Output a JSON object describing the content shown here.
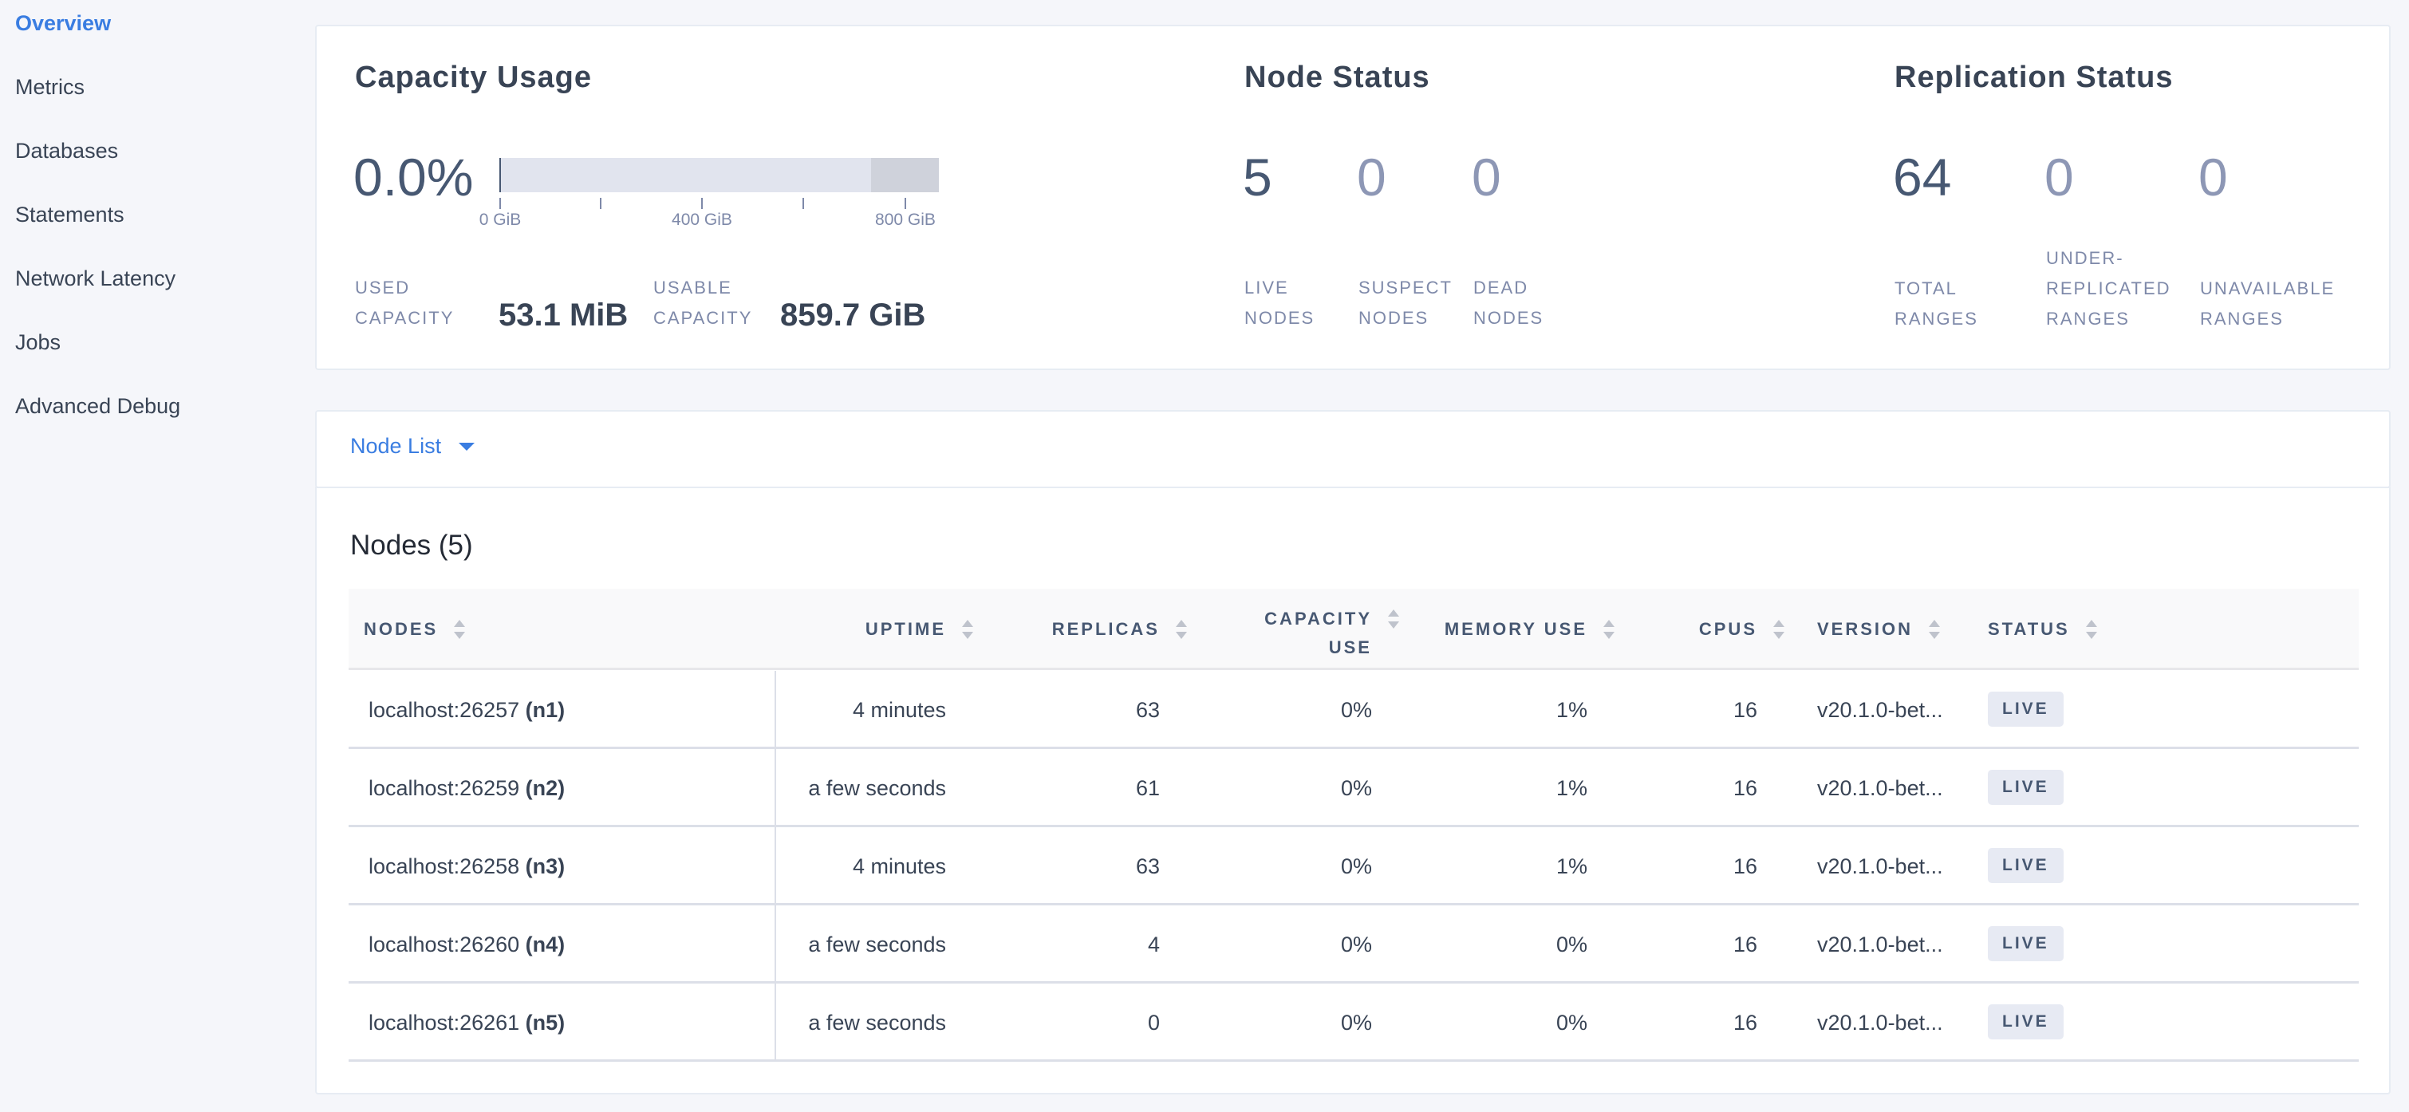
{
  "sidebar": {
    "items": [
      {
        "label": "Overview",
        "active": true
      },
      {
        "label": "Metrics"
      },
      {
        "label": "Databases"
      },
      {
        "label": "Statements"
      },
      {
        "label": "Network Latency"
      },
      {
        "label": "Jobs"
      },
      {
        "label": "Advanced Debug"
      }
    ]
  },
  "capacity": {
    "title": "Capacity Usage",
    "percent": "0.0%",
    "used_fraction": 0.0,
    "ticks": [
      "0 GiB",
      "400 GiB",
      "800 GiB"
    ],
    "used_label_1": "USED",
    "used_label_2": "CAPACITY",
    "used_value": "53.1 MiB",
    "usable_label_1": "USABLE",
    "usable_label_2": "CAPACITY",
    "usable_value": "859.7 GiB"
  },
  "node_status": {
    "title": "Node Status",
    "stats": [
      {
        "value": "5",
        "label_1": "LIVE",
        "label_2": "NODES"
      },
      {
        "value": "0",
        "label_1": "SUSPECT",
        "label_2": "NODES"
      },
      {
        "value": "0",
        "label_1": "DEAD",
        "label_2": "NODES"
      }
    ]
  },
  "replication_status": {
    "title": "Replication Status",
    "stats": [
      {
        "value": "64",
        "label_1": "",
        "label_2": "TOTAL",
        "label_3": "RANGES"
      },
      {
        "value": "0",
        "label_1": "UNDER-",
        "label_2": "REPLICATED",
        "label_3": "RANGES"
      },
      {
        "value": "0",
        "label_1": "",
        "label_2": "UNAVAILABLE",
        "label_3": "RANGES"
      }
    ]
  },
  "node_list": {
    "dropdown_label": "Node List",
    "title": "Nodes (5)",
    "columns": {
      "nodes": "NODES",
      "uptime": "UPTIME",
      "replicas": "REPLICAS",
      "capacity_1": "CAPACITY",
      "capacity_2": "USE",
      "memory": "MEMORY USE",
      "cpus": "CPUS",
      "version": "VERSION",
      "status": "STATUS"
    },
    "rows": [
      {
        "address": "localhost:26257",
        "id": "(n1)",
        "uptime": "4 minutes",
        "replicas": "63",
        "capacity": "0%",
        "memory": "1%",
        "cpus": "16",
        "version": "v20.1.0-bet...",
        "status": "LIVE"
      },
      {
        "address": "localhost:26259",
        "id": "(n2)",
        "uptime": "a few seconds",
        "replicas": "61",
        "capacity": "0%",
        "memory": "1%",
        "cpus": "16",
        "version": "v20.1.0-bet...",
        "status": "LIVE"
      },
      {
        "address": "localhost:26258",
        "id": "(n3)",
        "uptime": "4 minutes",
        "replicas": "63",
        "capacity": "0%",
        "memory": "1%",
        "cpus": "16",
        "version": "v20.1.0-bet...",
        "status": "LIVE"
      },
      {
        "address": "localhost:26260",
        "id": "(n4)",
        "uptime": "a few seconds",
        "replicas": "4",
        "capacity": "0%",
        "memory": "0%",
        "cpus": "16",
        "version": "v20.1.0-bet...",
        "status": "LIVE"
      },
      {
        "address": "localhost:26261",
        "id": "(n5)",
        "uptime": "a few seconds",
        "replicas": "0",
        "capacity": "0%",
        "memory": "0%",
        "cpus": "16",
        "version": "v20.1.0-bet...",
        "status": "LIVE"
      }
    ]
  },
  "colors": {
    "accent": "#3a7de1",
    "text": "#394455",
    "muted": "#7e89a9",
    "background": "#f5f6fa"
  }
}
